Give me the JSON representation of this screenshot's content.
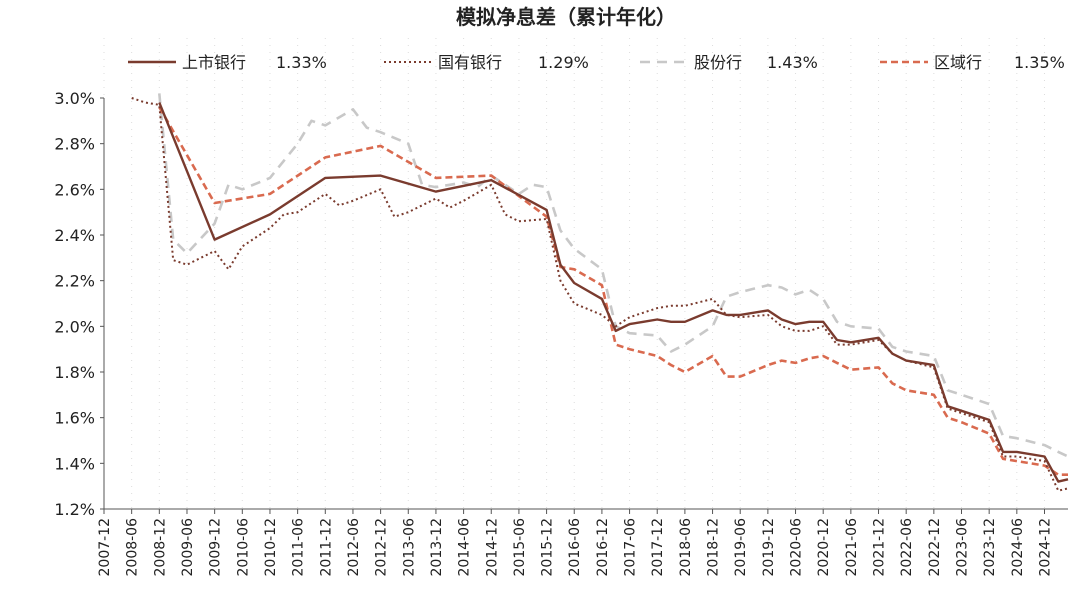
{
  "chart_data": {
    "type": "line",
    "title": "模拟净息差（累计年化）",
    "xlabel": "",
    "ylabel": "",
    "ylim": [
      1.2,
      3.0
    ],
    "y_ticks": [
      "1.2%",
      "1.4%",
      "1.6%",
      "1.8%",
      "2.0%",
      "2.2%",
      "2.4%",
      "2.6%",
      "2.8%",
      "3.0%"
    ],
    "x_tick_labels": [
      "2007-12",
      "2008-06",
      "2008-12",
      "2009-06",
      "2009-12",
      "2010-06",
      "2010-12",
      "2011-06",
      "2011-12",
      "2012-06",
      "2012-12",
      "2013-06",
      "2013-12",
      "2014-06",
      "2014-12",
      "2015-06",
      "2015-12",
      "2016-06",
      "2016-12",
      "2017-06",
      "2017-12",
      "2018-06",
      "2018-12",
      "2019-06",
      "2019-12",
      "2020-06",
      "2020-12",
      "2021-06",
      "2021-12",
      "2022-06",
      "2022-12",
      "2023-06",
      "2023-12",
      "2024-06",
      "2024-12"
    ],
    "legend_position": "top",
    "series": [
      {
        "name": "上市银行",
        "legend_value": "1.33%",
        "color": "#7a3b2e",
        "style": "solid",
        "points": [
          [
            2.0,
            2.98
          ],
          [
            4.0,
            2.38
          ],
          [
            6.0,
            2.49
          ],
          [
            8.0,
            2.65
          ],
          [
            10.0,
            2.66
          ],
          [
            12.0,
            2.59
          ],
          [
            14.0,
            2.64
          ],
          [
            16.0,
            2.51
          ],
          [
            16.5,
            2.27
          ],
          [
            17.0,
            2.19
          ],
          [
            18.0,
            2.12
          ],
          [
            18.5,
            1.98
          ],
          [
            19.0,
            2.01
          ],
          [
            19.5,
            2.02
          ],
          [
            20.0,
            2.03
          ],
          [
            20.5,
            2.02
          ],
          [
            21.0,
            2.02
          ],
          [
            22.0,
            2.07
          ],
          [
            22.5,
            2.05
          ],
          [
            23.0,
            2.05
          ],
          [
            24.0,
            2.07
          ],
          [
            24.5,
            2.03
          ],
          [
            25.0,
            2.01
          ],
          [
            25.5,
            2.02
          ],
          [
            26.0,
            2.02
          ],
          [
            26.5,
            1.94
          ],
          [
            27.0,
            1.93
          ],
          [
            28.0,
            1.95
          ],
          [
            28.5,
            1.88
          ],
          [
            29.0,
            1.85
          ],
          [
            30.0,
            1.83
          ],
          [
            30.5,
            1.65
          ],
          [
            31.0,
            1.63
          ],
          [
            32.0,
            1.59
          ],
          [
            32.5,
            1.45
          ],
          [
            33.0,
            1.45
          ],
          [
            34.0,
            1.43
          ],
          [
            34.5,
            1.32
          ],
          [
            34.85,
            1.33
          ]
        ]
      },
      {
        "name": "国有银行",
        "legend_value": "1.29%",
        "color": "#7a3b2e",
        "style": "dotted",
        "points": [
          [
            1.0,
            3.0
          ],
          [
            1.5,
            2.98
          ],
          [
            2.0,
            2.97
          ],
          [
            2.5,
            2.29
          ],
          [
            3.0,
            2.27
          ],
          [
            4.0,
            2.33
          ],
          [
            4.5,
            2.25
          ],
          [
            5.0,
            2.35
          ],
          [
            6.0,
            2.43
          ],
          [
            6.5,
            2.49
          ],
          [
            7.0,
            2.5
          ],
          [
            8.0,
            2.58
          ],
          [
            8.5,
            2.53
          ],
          [
            9.0,
            2.55
          ],
          [
            10.0,
            2.6
          ],
          [
            10.5,
            2.48
          ],
          [
            11.0,
            2.5
          ],
          [
            12.0,
            2.56
          ],
          [
            12.5,
            2.52
          ],
          [
            13.0,
            2.55
          ],
          [
            14.0,
            2.62
          ],
          [
            14.5,
            2.49
          ],
          [
            15.0,
            2.46
          ],
          [
            16.0,
            2.47
          ],
          [
            16.5,
            2.2
          ],
          [
            17.0,
            2.1
          ],
          [
            18.0,
            2.05
          ],
          [
            18.5,
            2.0
          ],
          [
            19.0,
            2.04
          ],
          [
            20.0,
            2.08
          ],
          [
            20.5,
            2.09
          ],
          [
            21.0,
            2.09
          ],
          [
            22.0,
            2.12
          ],
          [
            22.5,
            2.05
          ],
          [
            23.0,
            2.04
          ],
          [
            24.0,
            2.05
          ],
          [
            24.5,
            2.0
          ],
          [
            25.0,
            1.98
          ],
          [
            25.5,
            1.98
          ],
          [
            26.0,
            2.0
          ],
          [
            26.5,
            1.92
          ],
          [
            27.0,
            1.92
          ],
          [
            28.0,
            1.94
          ],
          [
            28.5,
            1.88
          ],
          [
            29.0,
            1.85
          ],
          [
            30.0,
            1.82
          ],
          [
            30.5,
            1.64
          ],
          [
            31.0,
            1.62
          ],
          [
            32.0,
            1.58
          ],
          [
            32.5,
            1.43
          ],
          [
            33.0,
            1.43
          ],
          [
            34.0,
            1.41
          ],
          [
            34.5,
            1.28
          ],
          [
            34.85,
            1.29
          ]
        ]
      },
      {
        "name": "股份行",
        "legend_value": "1.43%",
        "color": "#c8c8c8",
        "style": "dashed",
        "points": [
          [
            2.0,
            3.02
          ],
          [
            2.5,
            2.38
          ],
          [
            3.0,
            2.32
          ],
          [
            4.0,
            2.45
          ],
          [
            4.5,
            2.62
          ],
          [
            5.0,
            2.6
          ],
          [
            6.0,
            2.65
          ],
          [
            7.0,
            2.8
          ],
          [
            7.5,
            2.9
          ],
          [
            8.0,
            2.88
          ],
          [
            9.0,
            2.95
          ],
          [
            9.5,
            2.87
          ],
          [
            10.0,
            2.85
          ],
          [
            11.0,
            2.8
          ],
          [
            11.5,
            2.62
          ],
          [
            12.0,
            2.61
          ],
          [
            13.0,
            2.63
          ],
          [
            13.5,
            2.61
          ],
          [
            14.0,
            2.66
          ],
          [
            15.0,
            2.58
          ],
          [
            15.5,
            2.62
          ],
          [
            16.0,
            2.61
          ],
          [
            16.5,
            2.42
          ],
          [
            17.0,
            2.34
          ],
          [
            18.0,
            2.25
          ],
          [
            18.5,
            2.0
          ],
          [
            19.0,
            1.97
          ],
          [
            20.0,
            1.96
          ],
          [
            20.5,
            1.89
          ],
          [
            21.0,
            1.92
          ],
          [
            22.0,
            2.0
          ],
          [
            22.5,
            2.13
          ],
          [
            23.0,
            2.15
          ],
          [
            24.0,
            2.18
          ],
          [
            24.5,
            2.17
          ],
          [
            25.0,
            2.14
          ],
          [
            25.5,
            2.16
          ],
          [
            26.0,
            2.12
          ],
          [
            26.5,
            2.02
          ],
          [
            27.0,
            2.0
          ],
          [
            28.0,
            1.99
          ],
          [
            28.5,
            1.91
          ],
          [
            29.0,
            1.89
          ],
          [
            30.0,
            1.87
          ],
          [
            30.5,
            1.72
          ],
          [
            31.0,
            1.7
          ],
          [
            32.0,
            1.66
          ],
          [
            32.5,
            1.52
          ],
          [
            33.0,
            1.51
          ],
          [
            34.0,
            1.48
          ],
          [
            34.5,
            1.45
          ],
          [
            34.85,
            1.43
          ]
        ]
      },
      {
        "name": "区域行",
        "legend_value": "1.35%",
        "color": "#d96a4f",
        "style": "dashed",
        "points": [
          [
            2.0,
            2.96
          ],
          [
            4.0,
            2.54
          ],
          [
            6.0,
            2.58
          ],
          [
            8.0,
            2.74
          ],
          [
            10.0,
            2.79
          ],
          [
            12.0,
            2.65
          ],
          [
            14.0,
            2.66
          ],
          [
            16.0,
            2.48
          ],
          [
            16.5,
            2.26
          ],
          [
            17.0,
            2.25
          ],
          [
            18.0,
            2.18
          ],
          [
            18.5,
            1.92
          ],
          [
            19.0,
            1.9
          ],
          [
            20.0,
            1.87
          ],
          [
            20.5,
            1.83
          ],
          [
            21.0,
            1.8
          ],
          [
            22.0,
            1.87
          ],
          [
            22.5,
            1.78
          ],
          [
            23.0,
            1.78
          ],
          [
            24.0,
            1.83
          ],
          [
            24.5,
            1.85
          ],
          [
            25.0,
            1.84
          ],
          [
            25.5,
            1.86
          ],
          [
            26.0,
            1.87
          ],
          [
            26.5,
            1.84
          ],
          [
            27.0,
            1.81
          ],
          [
            28.0,
            1.82
          ],
          [
            28.5,
            1.75
          ],
          [
            29.0,
            1.72
          ],
          [
            30.0,
            1.7
          ],
          [
            30.5,
            1.6
          ],
          [
            31.0,
            1.58
          ],
          [
            32.0,
            1.53
          ],
          [
            32.5,
            1.42
          ],
          [
            33.0,
            1.41
          ],
          [
            34.0,
            1.39
          ],
          [
            34.5,
            1.35
          ],
          [
            34.85,
            1.35
          ]
        ]
      }
    ]
  }
}
